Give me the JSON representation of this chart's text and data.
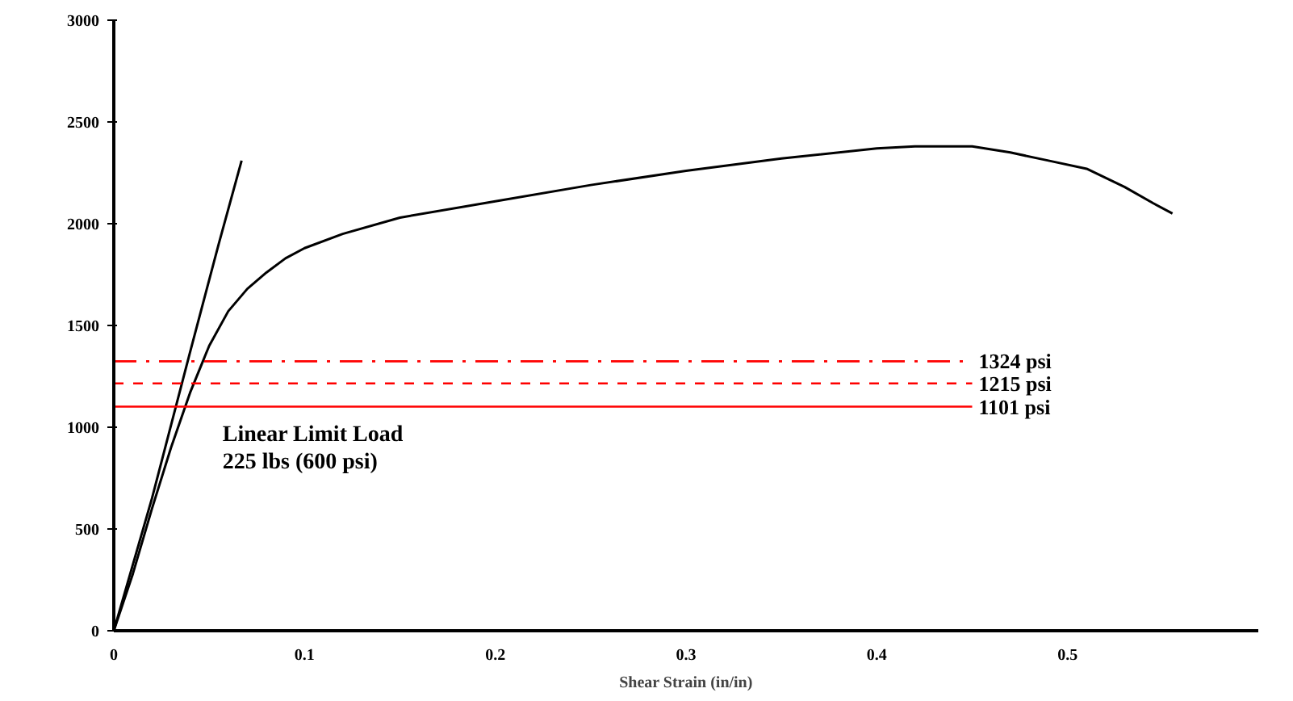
{
  "chart_data": {
    "type": "line",
    "xlabel": "Shear Strain (in/in)",
    "xlim": [
      0,
      0.6
    ],
    "xticks": [
      0,
      0.1,
      0.2,
      0.3,
      0.4,
      0.5
    ],
    "ylim": [
      0,
      3000
    ],
    "yticks": [
      0,
      500,
      1000,
      1500,
      2000,
      2500,
      3000
    ],
    "grid": false,
    "marker": "none",
    "line_style": "solid",
    "series": [
      {
        "color": "#000000",
        "x": [
          0,
          0.01,
          0.02,
          0.03,
          0.04,
          0.05,
          0.06,
          0.07,
          0.08,
          0.09,
          0.1,
          0.12,
          0.15,
          0.2,
          0.25,
          0.3,
          0.35,
          0.4,
          0.42,
          0.45,
          0.47,
          0.49,
          0.51,
          0.53,
          0.545,
          0.555
        ],
        "values": [
          0,
          280,
          600,
          900,
          1170,
          1400,
          1570,
          1680,
          1760,
          1830,
          1880,
          1950,
          2030,
          2110,
          2190,
          2260,
          2320,
          2370,
          2380,
          2380,
          2350,
          2310,
          2270,
          2180,
          2100,
          2050
        ]
      },
      {
        "color": "#000000",
        "x": [
          0,
          0.02,
          0.04,
          0.055,
          0.067
        ],
        "values": [
          0,
          650,
          1370,
          1900,
          2310
        ]
      }
    ],
    "ref_lines": [
      {
        "axis": "y",
        "value": 1324,
        "label": "1324 psi",
        "color": "#ff0000",
        "line_style": "dashed"
      },
      {
        "axis": "y",
        "value": 1215,
        "label": "1215 psi",
        "color": "#ff0000",
        "line_style": "dotted"
      },
      {
        "axis": "y",
        "value": 1101,
        "label": "1101 psi",
        "color": "#ff0000",
        "line_style": "solid"
      }
    ],
    "annotations": [
      "Linear Limit Load",
      "225 lbs (600 psi)"
    ]
  }
}
